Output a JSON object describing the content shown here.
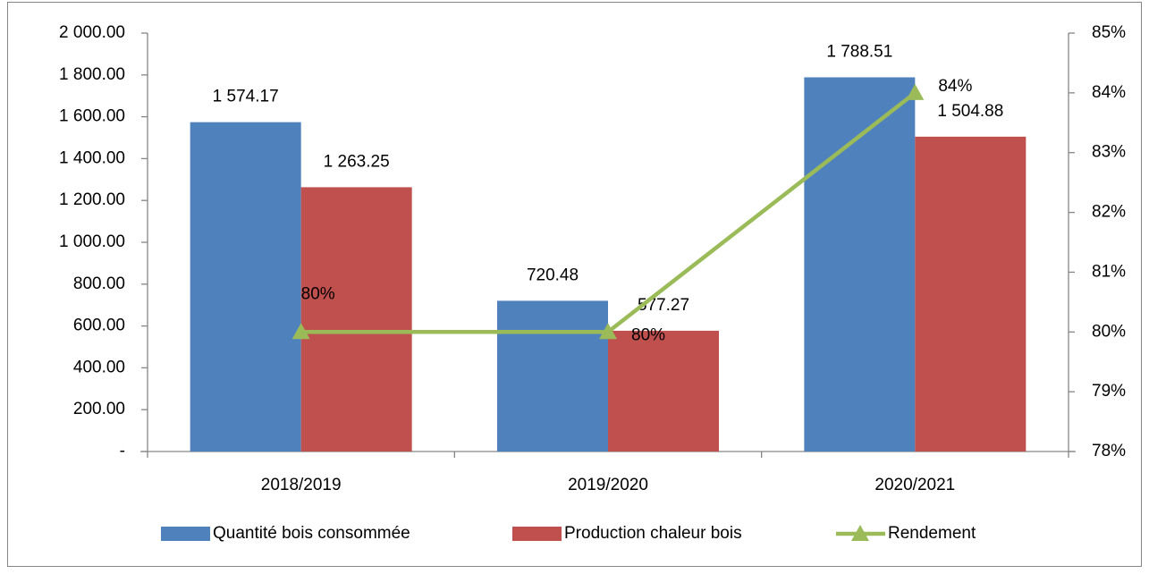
{
  "chart_data": {
    "type": "bar",
    "categories": [
      "2018/2019",
      "2019/2020",
      "2020/2021"
    ],
    "series": [
      {
        "name": "Quantité bois consommée",
        "color": "#4f81bd",
        "values": [
          1574.17,
          720.48,
          1788.51
        ],
        "value_labels": [
          "1 574.17",
          "720.48",
          "1 788.51"
        ]
      },
      {
        "name": "Production chaleur bois",
        "color": "#c0504d",
        "values": [
          1263.25,
          577.27,
          1504.88
        ],
        "value_labels": [
          "1 263.25",
          "577.27",
          "1 504.88"
        ]
      },
      {
        "name": "Rendement",
        "type": "line",
        "axis": "y2",
        "color": "#9bbb59",
        "values": [
          80,
          80,
          84
        ],
        "value_labels": [
          "80%",
          "80%",
          "84%"
        ]
      }
    ],
    "ylim": [
      0,
      2000
    ],
    "yticks": [
      {
        "value": 0,
        "label": "-"
      },
      {
        "value": 200,
        "label": "200.00"
      },
      {
        "value": 400,
        "label": "400.00"
      },
      {
        "value": 600,
        "label": "600.00"
      },
      {
        "value": 800,
        "label": "800.00"
      },
      {
        "value": 1000,
        "label": "1 000.00"
      },
      {
        "value": 1200,
        "label": "1 200.00"
      },
      {
        "value": 1400,
        "label": "1 400.00"
      },
      {
        "value": 1600,
        "label": "1 600.00"
      },
      {
        "value": 1800,
        "label": "1 800.00"
      },
      {
        "value": 2000,
        "label": "2 000.00"
      }
    ],
    "y2lim": [
      78,
      85
    ],
    "y2ticks": [
      {
        "value": 78,
        "label": "78%"
      },
      {
        "value": 79,
        "label": "79%"
      },
      {
        "value": 80,
        "label": "80%"
      },
      {
        "value": 81,
        "label": "81%"
      },
      {
        "value": 82,
        "label": "82%"
      },
      {
        "value": 83,
        "label": "83%"
      },
      {
        "value": 84,
        "label": "84%"
      },
      {
        "value": 85,
        "label": "85%"
      }
    ],
    "legend": "bottom"
  }
}
